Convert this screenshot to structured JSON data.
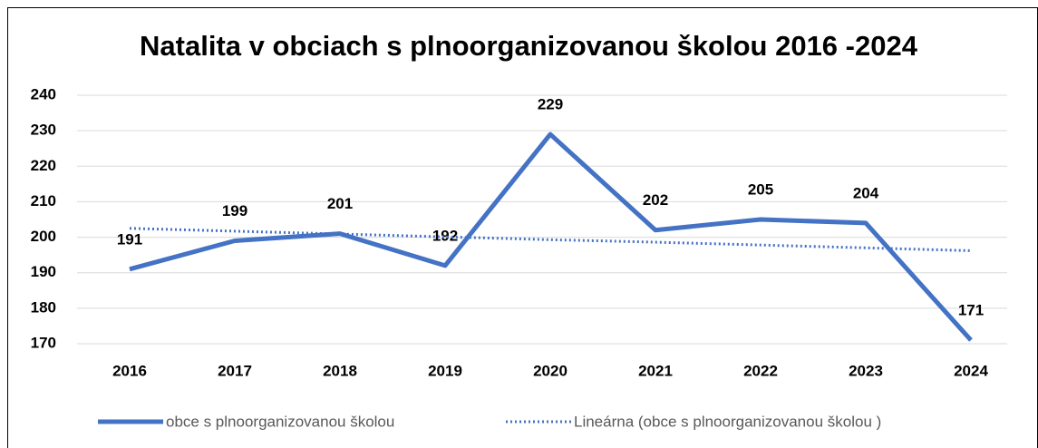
{
  "chart_data": {
    "type": "line",
    "title": "Natalita v obciach s plnoorganizovanou školou 2016 -2024",
    "categories": [
      "2016",
      "2017",
      "2018",
      "2019",
      "2020",
      "2021",
      "2022",
      "2023",
      "2024"
    ],
    "series": [
      {
        "name": "obce s plnoorganizovanou školou",
        "color": "#4472c4",
        "dashed": false,
        "data_labels": true,
        "values": [
          191,
          199,
          201,
          192,
          229,
          202,
          205,
          204,
          171
        ]
      },
      {
        "name": "Lineárna (obce s plnoorganizovanou školou )",
        "color": "#4472c4",
        "dashed": true,
        "data_labels": false,
        "values": [
          202.5,
          201.7,
          200.9,
          200.1,
          199.3,
          198.6,
          197.8,
          197.0,
          196.2
        ]
      }
    ],
    "ylim": [
      170,
      240
    ],
    "yticks": [
      170,
      180,
      190,
      200,
      210,
      220,
      230,
      240
    ],
    "grid": true,
    "legend": "bottom"
  }
}
